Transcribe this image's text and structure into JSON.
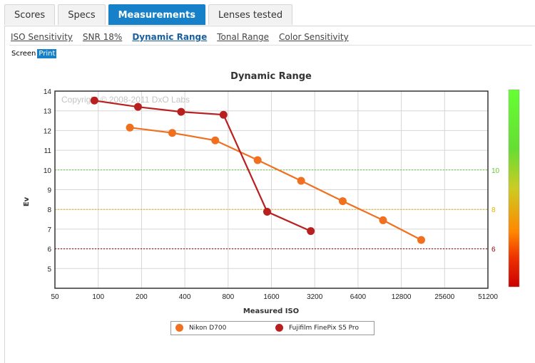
{
  "tabs": [
    {
      "label": "Scores",
      "active": false
    },
    {
      "label": "Specs",
      "active": false
    },
    {
      "label": "Measurements",
      "active": true
    },
    {
      "label": "Lenses tested",
      "active": false
    }
  ],
  "subnav": [
    {
      "label": "ISO Sensitivity",
      "active": false
    },
    {
      "label": "SNR 18%",
      "active": false
    },
    {
      "label": "Dynamic Range",
      "active": true
    },
    {
      "label": "Tonal Range",
      "active": false
    },
    {
      "label": "Color Sensitivity",
      "active": false
    }
  ],
  "view_toggle": {
    "screen": "Screen",
    "print": "Print",
    "selected": "print"
  },
  "colors": {
    "accent": "#1680c8",
    "nikon": "#f07020",
    "fujifilm": "#b82020",
    "ref_green": "#66cc33",
    "ref_yellow": "#e8b400",
    "ref_red": "#990000"
  },
  "chart_data": {
    "type": "line",
    "title": "Dynamic Range",
    "xlabel": "Measured ISO",
    "ylabel": "Ev",
    "x_scale": "log2",
    "x_ticks": [
      50,
      100,
      200,
      400,
      800,
      1600,
      3200,
      6400,
      12800,
      25600,
      51200
    ],
    "xlim": [
      50,
      51200
    ],
    "y_ticks": [
      5,
      6,
      7,
      8,
      9,
      10,
      11,
      12,
      13,
      14
    ],
    "ylim": [
      4,
      14
    ],
    "grid": true,
    "watermark": "Copyright © 2008-2011 DxO Labs",
    "reference_lines": [
      {
        "y": 10,
        "label": "10",
        "color": "#66cc33"
      },
      {
        "y": 8,
        "label": "8",
        "color": "#e8b400"
      },
      {
        "y": 6,
        "label": "6",
        "color": "#990000"
      }
    ],
    "legend_position": "bottom",
    "series": [
      {
        "name": "Nikon D700",
        "color": "#f07020",
        "points": [
          [
            166,
            12.15
          ],
          [
            327,
            11.88
          ],
          [
            651,
            11.5
          ],
          [
            1283,
            10.5
          ],
          [
            2574,
            9.45
          ],
          [
            5008,
            8.42
          ],
          [
            9552,
            7.45
          ],
          [
            17600,
            6.45
          ]
        ]
      },
      {
        "name": "Fujifilm FinePix S5 Pro",
        "color": "#b82020",
        "points": [
          [
            94,
            13.52
          ],
          [
            189,
            13.2
          ],
          [
            377,
            12.95
          ],
          [
            743,
            12.8
          ],
          [
            1494,
            7.88
          ],
          [
            3004,
            6.9
          ]
        ]
      }
    ]
  }
}
